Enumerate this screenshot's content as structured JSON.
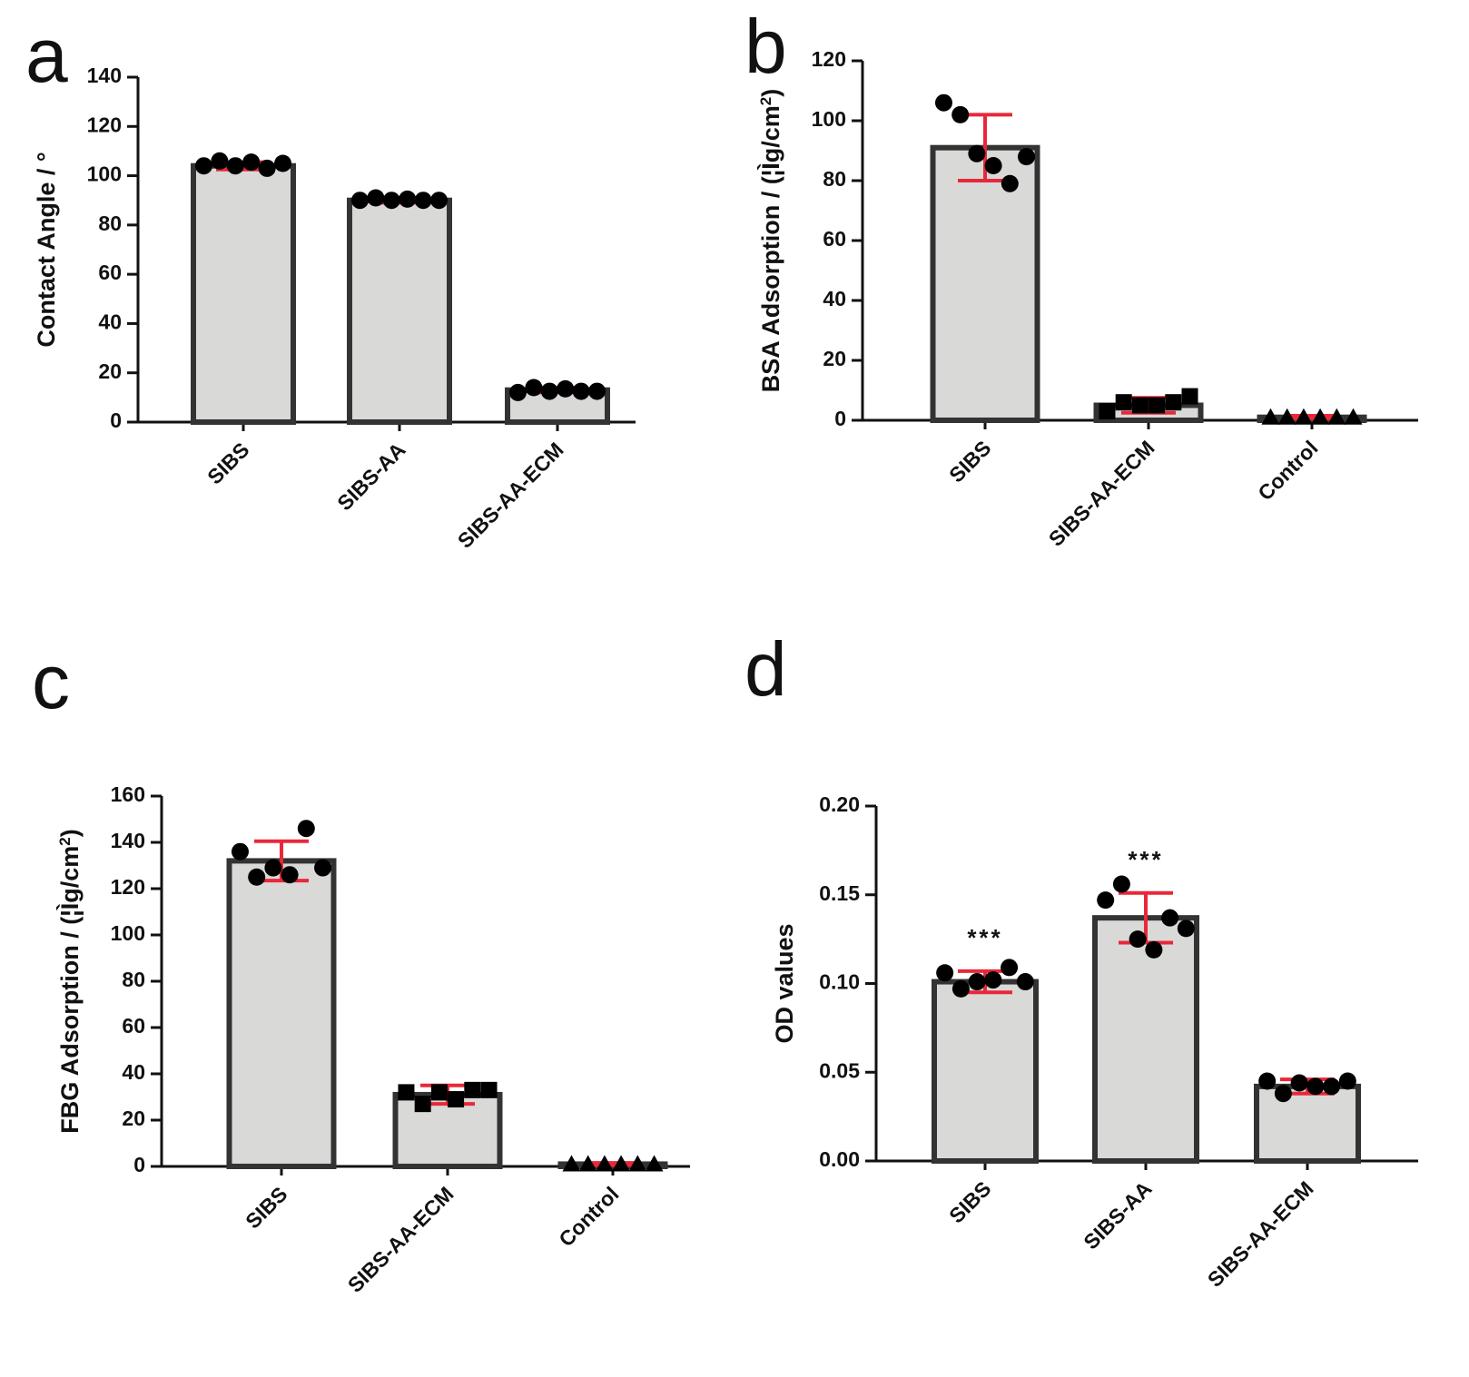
{
  "chart_data": [
    {
      "type": "bar",
      "panel": "a",
      "y_label": [
        "Contact Angle / °"
      ],
      "categories": [
        "SIBS",
        "SIBS-AA",
        "SIBS-AA-ECM"
      ],
      "values": [
        104,
        90,
        13
      ],
      "errors": [
        1.5,
        1,
        1
      ],
      "points": [
        [
          104,
          106,
          104,
          105.5,
          103,
          105
        ],
        [
          90,
          91,
          90,
          90.5,
          90,
          90
        ],
        [
          12,
          14,
          12.5,
          13.5,
          12.5,
          12.5
        ]
      ],
      "markers": [
        "circle",
        "circle",
        "circle"
      ],
      "ylim": [
        0,
        140
      ],
      "yticks": [
        0,
        20,
        40,
        60,
        80,
        100,
        120,
        140
      ],
      "bar_color": "#d9d9d7",
      "edge_color": "#333333",
      "error_color": "#e8283a",
      "point_color": "#000000"
    },
    {
      "type": "bar",
      "panel": "b",
      "y_label": [
        "BSA Adsorption / (¦Ìg/cm",
        "2",
        ")"
      ],
      "categories": [
        "SIBS",
        "SIBS-AA-ECM",
        "Control"
      ],
      "values": [
        91,
        5,
        1
      ],
      "errors": [
        11,
        2.5,
        0.5
      ],
      "points": [
        [
          106,
          102,
          89,
          85,
          79,
          88
        ],
        [
          3,
          6,
          5,
          5,
          6,
          8
        ],
        [
          1,
          1,
          1,
          1,
          1,
          1
        ]
      ],
      "markers": [
        "circle",
        "square",
        "triangle"
      ],
      "ylim": [
        0,
        120
      ],
      "yticks": [
        0,
        20,
        40,
        60,
        80,
        100,
        120
      ],
      "bar_color": "#d9d9d7",
      "edge_color": "#333333",
      "error_color": "#e8283a",
      "point_color": "#000000"
    },
    {
      "type": "bar",
      "panel": "c",
      "y_label": [
        "FBG Adsorption / (¦Ìg/cm",
        "2",
        ")"
      ],
      "categories": [
        "SIBS",
        "SIBS-AA-ECM",
        "Control"
      ],
      "values": [
        132,
        31,
        1
      ],
      "errors": [
        8.5,
        4,
        0.5
      ],
      "points": [
        [
          136,
          125,
          129,
          126,
          146,
          129
        ],
        [
          32,
          27,
          32,
          29,
          33,
          33
        ],
        [
          1,
          1,
          1,
          1,
          1,
          1
        ]
      ],
      "markers": [
        "circle",
        "square",
        "triangle"
      ],
      "ylim": [
        0,
        160
      ],
      "yticks": [
        0,
        20,
        40,
        60,
        80,
        100,
        120,
        140,
        160
      ],
      "bar_color": "#d9d9d7",
      "edge_color": "#333333",
      "error_color": "#e8283a",
      "point_color": "#000000"
    },
    {
      "type": "bar",
      "panel": "d",
      "y_label": [
        "OD values"
      ],
      "categories": [
        "SIBS",
        "SIBS-AA",
        "SIBS-AA-ECM"
      ],
      "values": [
        0.101,
        0.137,
        0.042
      ],
      "errors": [
        0.006,
        0.014,
        0.004
      ],
      "points": [
        [
          0.106,
          0.097,
          0.101,
          0.102,
          0.109,
          0.101
        ],
        [
          0.147,
          0.156,
          0.125,
          0.119,
          0.137,
          0.131
        ],
        [
          0.045,
          0.038,
          0.044,
          0.042,
          0.042,
          0.045
        ]
      ],
      "markers": [
        "circle",
        "circle",
        "circle"
      ],
      "annotations": [
        "***",
        "***",
        null
      ],
      "ylim": [
        0,
        0.2
      ],
      "yticks": [
        {
          "value": 0,
          "label": "0.00"
        },
        {
          "value": 0.05,
          "label": "0.05"
        },
        {
          "value": 0.1,
          "label": "0.10"
        },
        {
          "value": 0.15,
          "label": "0.15"
        },
        {
          "value": 0.2,
          "label": "0.20"
        }
      ],
      "bar_color": "#d9d9d7",
      "edge_color": "#333333",
      "error_color": "#e8283a",
      "point_color": "#000000"
    }
  ]
}
